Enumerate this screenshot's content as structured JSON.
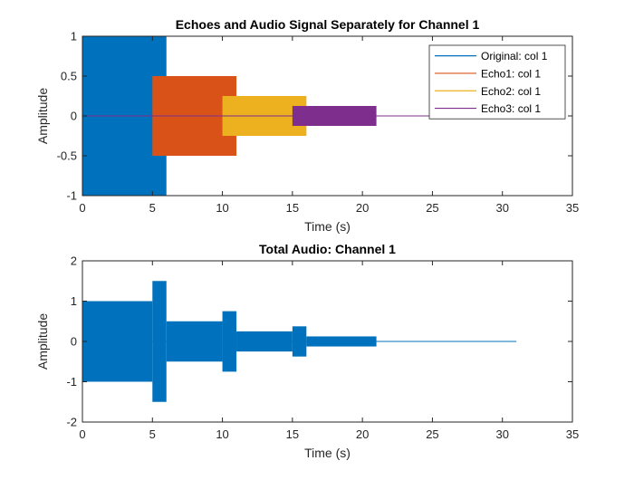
{
  "chart_data": [
    {
      "type": "area",
      "title": "Echoes and Audio Signal Separately for Channel 1",
      "xlabel": "Time (s)",
      "ylabel": "Amplitude",
      "xlim": [
        0,
        35
      ],
      "ylim": [
        -1,
        1
      ],
      "xticks": [
        0,
        5,
        10,
        15,
        20,
        25,
        30,
        35
      ],
      "yticks": [
        -1,
        -0.5,
        0,
        0.5,
        1
      ],
      "xtick_labels": [
        "0",
        "5",
        "10",
        "15",
        "20",
        "25",
        "30",
        "35"
      ],
      "ytick_labels": [
        "-1",
        "-0.5",
        "0",
        "0.5",
        "1"
      ],
      "legend_position": "top-right",
      "grid": false,
      "series": [
        {
          "name": "Original: col 1",
          "color": "#0072BD",
          "segments": [
            {
              "x0": 0,
              "x1": 6,
              "amp": 1
            }
          ],
          "zero_line_end": 31
        },
        {
          "name": "Echo1: col 1",
          "color": "#D95319",
          "segments": [
            {
              "x0": 5,
              "x1": 11,
              "amp": 0.5
            }
          ],
          "zero_line_end": 31
        },
        {
          "name": "Echo2: col 1",
          "color": "#EDB120",
          "segments": [
            {
              "x0": 10,
              "x1": 16,
              "amp": 0.25
            }
          ],
          "zero_line_end": 31
        },
        {
          "name": "Echo3: col 1",
          "color": "#7E2F8E",
          "segments": [
            {
              "x0": 15,
              "x1": 21,
              "amp": 0.125
            }
          ],
          "zero_line_end": 31
        }
      ]
    },
    {
      "type": "area",
      "title": "Total Audio: Channel 1",
      "xlabel": "Time (s)",
      "ylabel": "Amplitude",
      "xlim": [
        0,
        35
      ],
      "ylim": [
        -2,
        2
      ],
      "xticks": [
        0,
        5,
        10,
        15,
        20,
        25,
        30,
        35
      ],
      "yticks": [
        -2,
        -1,
        0,
        1,
        2
      ],
      "xtick_labels": [
        "0",
        "5",
        "10",
        "15",
        "20",
        "25",
        "30",
        "35"
      ],
      "ytick_labels": [
        "-2",
        "-1",
        "0",
        "1",
        "2"
      ],
      "grid": false,
      "series": [
        {
          "color": "#0072BD",
          "segments": [
            {
              "x0": 0,
              "x1": 5,
              "amp": 1
            },
            {
              "x0": 5,
              "x1": 6,
              "amp": 1.5
            },
            {
              "x0": 6,
              "x1": 10,
              "amp": 0.5
            },
            {
              "x0": 10,
              "x1": 11,
              "amp": 0.75
            },
            {
              "x0": 11,
              "x1": 15,
              "amp": 0.25
            },
            {
              "x0": 15,
              "x1": 16,
              "amp": 0.375
            },
            {
              "x0": 16,
              "x1": 21,
              "amp": 0.125
            }
          ],
          "zero_line_end": 31
        }
      ]
    }
  ]
}
